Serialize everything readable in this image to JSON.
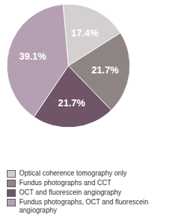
{
  "chart_data": {
    "type": "pie",
    "categories": [
      "Optical coherence tomography only",
      "Fundus photographs and CCT",
      "OCT and fluorescein angiography",
      "Fundus photographs, OCT and fluorescein angiography"
    ],
    "values": [
      17.4,
      21.7,
      21.7,
      39.1
    ],
    "value_labels": [
      "17.4%",
      "21.7%",
      "21.7%",
      "39.1%"
    ],
    "colors": [
      "#d4d0d1",
      "#8e8583",
      "#6f5567",
      "#b5a0b3"
    ],
    "data_labels": true,
    "legend": "bottom"
  }
}
